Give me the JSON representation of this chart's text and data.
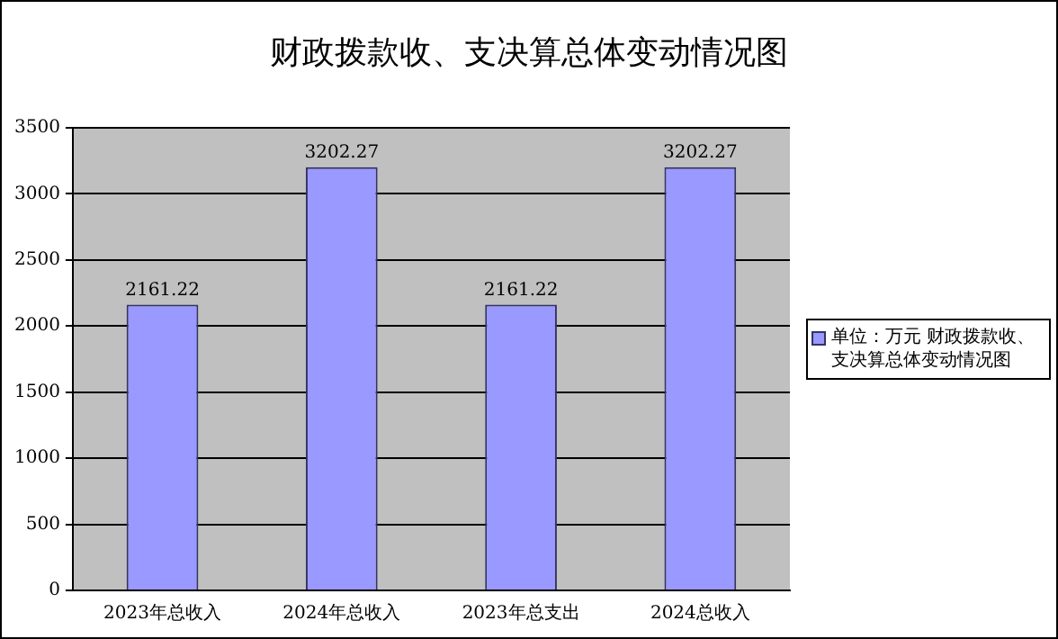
{
  "chart_data": {
    "type": "bar",
    "title": "财政拨款收、支决算总体变动情况图",
    "categories": [
      "2023年总收入",
      "2024年总收入",
      "2023年总支出",
      "2024总收入"
    ],
    "series": [
      {
        "name": "单位：万元 财政拨款收、支决算总体变动情况图",
        "color": "#9999ff",
        "values": [
          2161.22,
          3202.27,
          2161.22,
          3202.27
        ]
      }
    ],
    "ylim": [
      0,
      3500
    ],
    "yticks": [
      0,
      500,
      1000,
      1500,
      2000,
      2500,
      3000,
      3500
    ],
    "grid": "y",
    "legend": "right",
    "data_labels": true
  }
}
